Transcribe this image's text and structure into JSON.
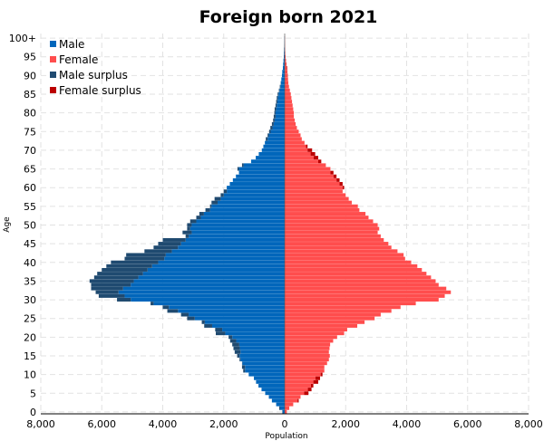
{
  "chart_data": {
    "type": "bar",
    "orientation": "horizontal-pyramid",
    "title": "Foreign born 2021",
    "xlabel": "Population",
    "ylabel": "Age",
    "xlim": [
      -8000,
      8000
    ],
    "x_ticks": [
      "8,000",
      "6,000",
      "4,000",
      "2,000",
      "0",
      "2,000",
      "4,000",
      "6,000",
      "8,000"
    ],
    "y_tick_labels": [
      "0",
      "5",
      "10",
      "15",
      "20",
      "25",
      "30",
      "35",
      "40",
      "45",
      "50",
      "55",
      "60",
      "65",
      "70",
      "75",
      "80",
      "85",
      "90",
      "95",
      "100+"
    ],
    "grid": true,
    "legend_position": "top-left",
    "legend": [
      "Male",
      "Female",
      "Male surplus",
      "Female surplus"
    ],
    "colors": {
      "male": "#0066bb",
      "female": "#ff4d4d",
      "male_surplus": "#1f4a70",
      "female_surplus": "#bb0000"
    },
    "ages": [
      0,
      1,
      2,
      3,
      4,
      5,
      6,
      7,
      8,
      9,
      10,
      11,
      12,
      13,
      14,
      15,
      16,
      17,
      18,
      19,
      20,
      21,
      22,
      23,
      24,
      25,
      26,
      27,
      28,
      29,
      30,
      31,
      32,
      33,
      34,
      35,
      36,
      37,
      38,
      39,
      40,
      41,
      42,
      43,
      44,
      45,
      46,
      47,
      48,
      49,
      50,
      51,
      52,
      53,
      54,
      55,
      56,
      57,
      58,
      59,
      60,
      61,
      62,
      63,
      64,
      65,
      66,
      67,
      68,
      69,
      70,
      71,
      72,
      73,
      74,
      75,
      76,
      77,
      78,
      79,
      80,
      81,
      82,
      83,
      84,
      85,
      86,
      87,
      88,
      89,
      90,
      91,
      92,
      93,
      94,
      95,
      96,
      97,
      98,
      99,
      100
    ],
    "series": [
      {
        "name": "Male",
        "values": [
          80,
          180,
          280,
          420,
          520,
          640,
          760,
          860,
          940,
          1010,
          1180,
          1360,
          1400,
          1400,
          1480,
          1560,
          1640,
          1680,
          1720,
          1790,
          1840,
          2260,
          2280,
          2640,
          2720,
          3200,
          3400,
          3850,
          4000,
          4400,
          5500,
          6100,
          6200,
          6350,
          6350,
          6400,
          6250,
          6150,
          6000,
          5850,
          5700,
          5250,
          5200,
          4600,
          4300,
          4150,
          4000,
          3250,
          3350,
          3200,
          3200,
          3100,
          2900,
          2800,
          2600,
          2450,
          2400,
          2300,
          2100,
          2000,
          1900,
          1800,
          1700,
          1600,
          1500,
          1550,
          1400,
          1100,
          950,
          850,
          750,
          700,
          650,
          620,
          560,
          510,
          470,
          420,
          380,
          360,
          340,
          330,
          300,
          280,
          260,
          230,
          190,
          160,
          130,
          110,
          90,
          80,
          60,
          50,
          40,
          30,
          25,
          20,
          15,
          10,
          10
        ]
      },
      {
        "name": "Female",
        "values": [
          70,
          150,
          280,
          460,
          520,
          780,
          880,
          940,
          1100,
          1160,
          1240,
          1300,
          1300,
          1390,
          1450,
          1480,
          1450,
          1470,
          1490,
          1590,
          1720,
          1950,
          2050,
          2380,
          2620,
          2950,
          3150,
          3500,
          3800,
          4300,
          5050,
          5250,
          5450,
          5300,
          5050,
          4950,
          4800,
          4650,
          4500,
          4350,
          4150,
          3950,
          3900,
          3700,
          3500,
          3400,
          3250,
          3150,
          3050,
          3100,
          3050,
          2900,
          2750,
          2650,
          2450,
          2400,
          2200,
          2100,
          2000,
          1900,
          1950,
          1900,
          1800,
          1700,
          1600,
          1500,
          1350,
          1200,
          1100,
          1000,
          900,
          750,
          650,
          560,
          520,
          460,
          400,
          360,
          330,
          300,
          300,
          280,
          260,
          240,
          220,
          200,
          170,
          140,
          120,
          110,
          100,
          90,
          80,
          60,
          45,
          30,
          20,
          15,
          10,
          8,
          6
        ]
      },
      {
        "name": "Male surplus",
        "values": [
          10,
          30,
          0,
          0,
          0,
          0,
          0,
          0,
          0,
          0,
          0,
          60,
          100,
          10,
          30,
          80,
          190,
          210,
          230,
          200,
          120,
          310,
          230,
          260,
          100,
          250,
          250,
          350,
          200,
          100,
          450,
          850,
          750,
          1050,
          1300,
          1450,
          1450,
          1500,
          1500,
          1500,
          1550,
          1300,
          1300,
          900,
          800,
          750,
          750,
          100,
          300,
          100,
          150,
          200,
          150,
          150,
          150,
          50,
          200,
          200,
          100,
          100,
          0,
          0,
          0,
          0,
          0,
          50,
          50,
          0,
          0,
          0,
          0,
          0,
          0,
          60,
          40,
          50,
          70,
          60,
          50,
          60,
          40,
          50,
          40,
          40,
          40,
          30,
          20,
          20,
          10,
          0,
          0,
          0,
          0,
          0,
          0,
          0,
          0,
          5,
          5,
          2,
          4
        ]
      },
      {
        "name": "Female surplus",
        "values": [
          0,
          0,
          0,
          40,
          0,
          140,
          120,
          80,
          160,
          150,
          60,
          0,
          0,
          0,
          0,
          0,
          0,
          0,
          0,
          0,
          0,
          0,
          0,
          0,
          0,
          0,
          0,
          0,
          0,
          0,
          0,
          0,
          0,
          0,
          0,
          0,
          0,
          0,
          0,
          0,
          0,
          0,
          0,
          0,
          0,
          0,
          0,
          0,
          0,
          0,
          0,
          0,
          0,
          0,
          0,
          0,
          0,
          0,
          0,
          0,
          50,
          100,
          100,
          100,
          100,
          0,
          0,
          100,
          150,
          150,
          150,
          50,
          0,
          0,
          0,
          0,
          0,
          0,
          0,
          0,
          0,
          0,
          0,
          0,
          0,
          0,
          0,
          0,
          0,
          0,
          10,
          10,
          20,
          10,
          5,
          0,
          0,
          0,
          0,
          0,
          0
        ]
      }
    ]
  }
}
